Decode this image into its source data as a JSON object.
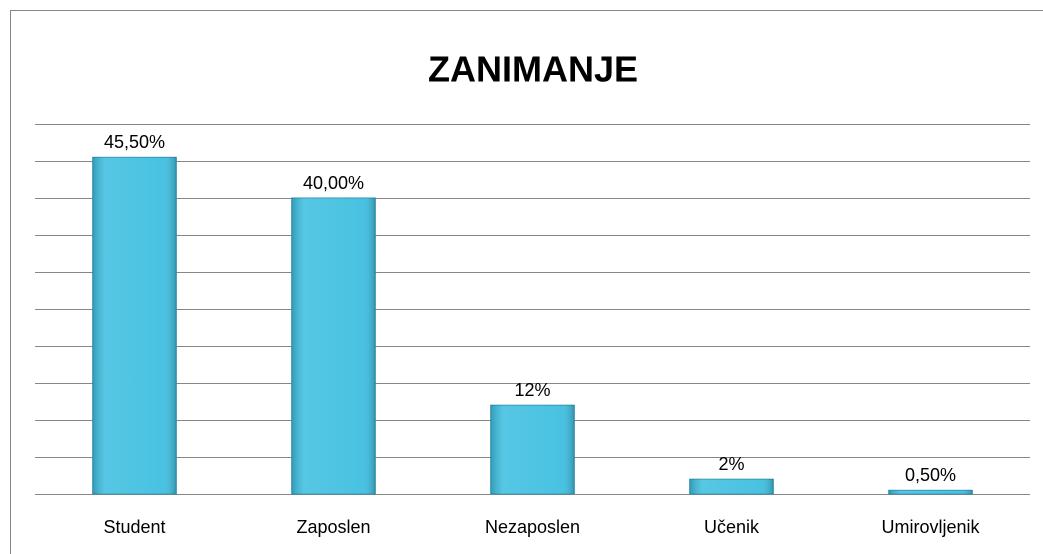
{
  "chart_data": {
    "type": "bar",
    "title": "ZANIMANJE",
    "categories": [
      "Student",
      "Zaposlen",
      "Nezaposlen",
      "Učenik",
      "Umirovljenik"
    ],
    "values": [
      45.5,
      40,
      12,
      2,
      0.5
    ],
    "value_labels": [
      "45,50%",
      "40,00%",
      "12%",
      "2%",
      "0,50%"
    ],
    "color": "#3fbfe0",
    "ylim": [
      0,
      50
    ],
    "yticks": [
      0,
      5,
      10,
      15,
      20,
      25,
      30,
      35,
      40,
      45,
      50
    ],
    "grid": true
  }
}
